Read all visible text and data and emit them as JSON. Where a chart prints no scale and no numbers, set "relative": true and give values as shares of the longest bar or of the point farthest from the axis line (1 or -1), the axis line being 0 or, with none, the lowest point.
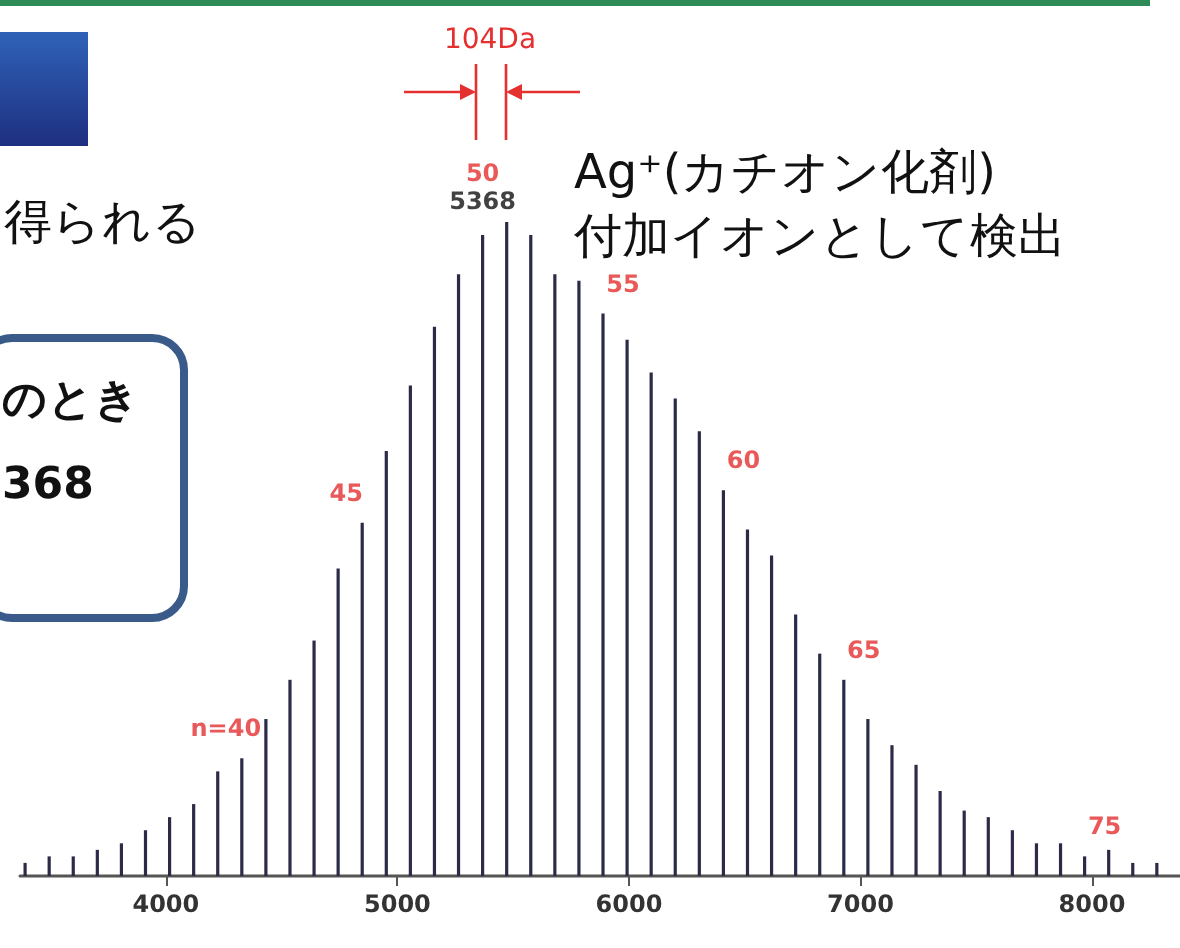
{
  "chart_data": {
    "type": "bar",
    "relative": true,
    "color": "#2b2b48",
    "x": [
      3392,
      3496,
      3600,
      3704,
      3808,
      3912,
      4016,
      4120,
      4224,
      4328,
      4432,
      4536,
      4640,
      4744,
      4848,
      4952,
      5056,
      5160,
      5264,
      5368,
      5472,
      5576,
      5680,
      5784,
      5888,
      5992,
      6096,
      6200,
      6304,
      6408,
      6512,
      6616,
      6720,
      6824,
      6928,
      7032,
      7136,
      7240,
      7344,
      7448,
      7552,
      7656,
      7760,
      7864,
      7968,
      8072,
      8176,
      8280
    ],
    "values": [
      0.02,
      0.03,
      0.03,
      0.04,
      0.05,
      0.07,
      0.09,
      0.11,
      0.16,
      0.18,
      0.24,
      0.3,
      0.36,
      0.47,
      0.54,
      0.65,
      0.75,
      0.84,
      0.92,
      0.98,
      1,
      0.98,
      0.92,
      0.91,
      0.86,
      0.82,
      0.77,
      0.73,
      0.68,
      0.59,
      0.53,
      0.49,
      0.4,
      0.34,
      0.3,
      0.24,
      0.2,
      0.17,
      0.13,
      0.1,
      0.09,
      0.07,
      0.05,
      0.05,
      0.03,
      0.04,
      0.02,
      0.02
    ],
    "xlim": [
      3370,
      8380
    ],
    "xticks": [
      4000,
      5000,
      6000,
      7000,
      8000
    ],
    "grid": false,
    "annotations": [
      "104Da",
      "Ag⁺(カチオン化剤)",
      "付加イオンとして検出",
      "得られる",
      "のとき",
      "368",
      {
        "text": "n=40",
        "x": 4328,
        "y": 0.18
      },
      {
        "text": "45",
        "x": 4848,
        "y": 0.54
      },
      {
        "text": "50",
        "x": 5368,
        "y": 0.98
      },
      {
        "text": "5368",
        "x": 5368,
        "y": 0.98
      },
      {
        "text": "55",
        "x": 5888,
        "y": 0.86
      },
      {
        "text": "60",
        "x": 6408,
        "y": 0.59
      },
      {
        "text": "65",
        "x": 6928,
        "y": 0.3
      },
      {
        "text": "75",
        "x": 7968,
        "y": 0.03
      }
    ]
  }
}
